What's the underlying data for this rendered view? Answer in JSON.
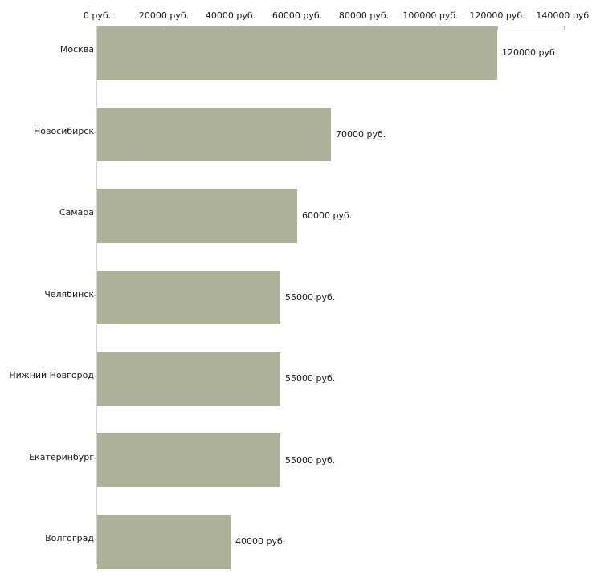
{
  "chart_data": {
    "type": "bar",
    "orientation": "horizontal",
    "categories": [
      "Москва",
      "Новосибирск",
      "Самара",
      "Челябинск",
      "Нижний Новгород",
      "Екатеринбург",
      "Волгоград"
    ],
    "values": [
      120000,
      70000,
      60000,
      55000,
      55000,
      55000,
      40000
    ],
    "value_labels": [
      "120000 руб.",
      "70000 руб.",
      "60000 руб.",
      "55000 руб.",
      "55000 руб.",
      "55000 руб.",
      "40000 руб."
    ],
    "x_ticks": [
      0,
      20000,
      40000,
      60000,
      80000,
      100000,
      120000,
      140000
    ],
    "x_tick_labels": [
      "0 руб.",
      "20000 руб.",
      "40000 руб.",
      "60000 руб.",
      "80000 руб.",
      "100000 руб.",
      "120000 руб.",
      "140000 руб."
    ],
    "xlim": [
      0,
      140000
    ],
    "unit": "руб.",
    "axis_position": "top",
    "grid": false,
    "legend": "none",
    "colors": {
      "bar": "#acb199",
      "axis_line": "#c6c6c6",
      "y_axis_line": "#d4d4d0",
      "axis_tick": "#b9bd98",
      "category_tick": "#d4d0c0",
      "text": "#1b1b1b",
      "background": "#ffffff"
    }
  }
}
